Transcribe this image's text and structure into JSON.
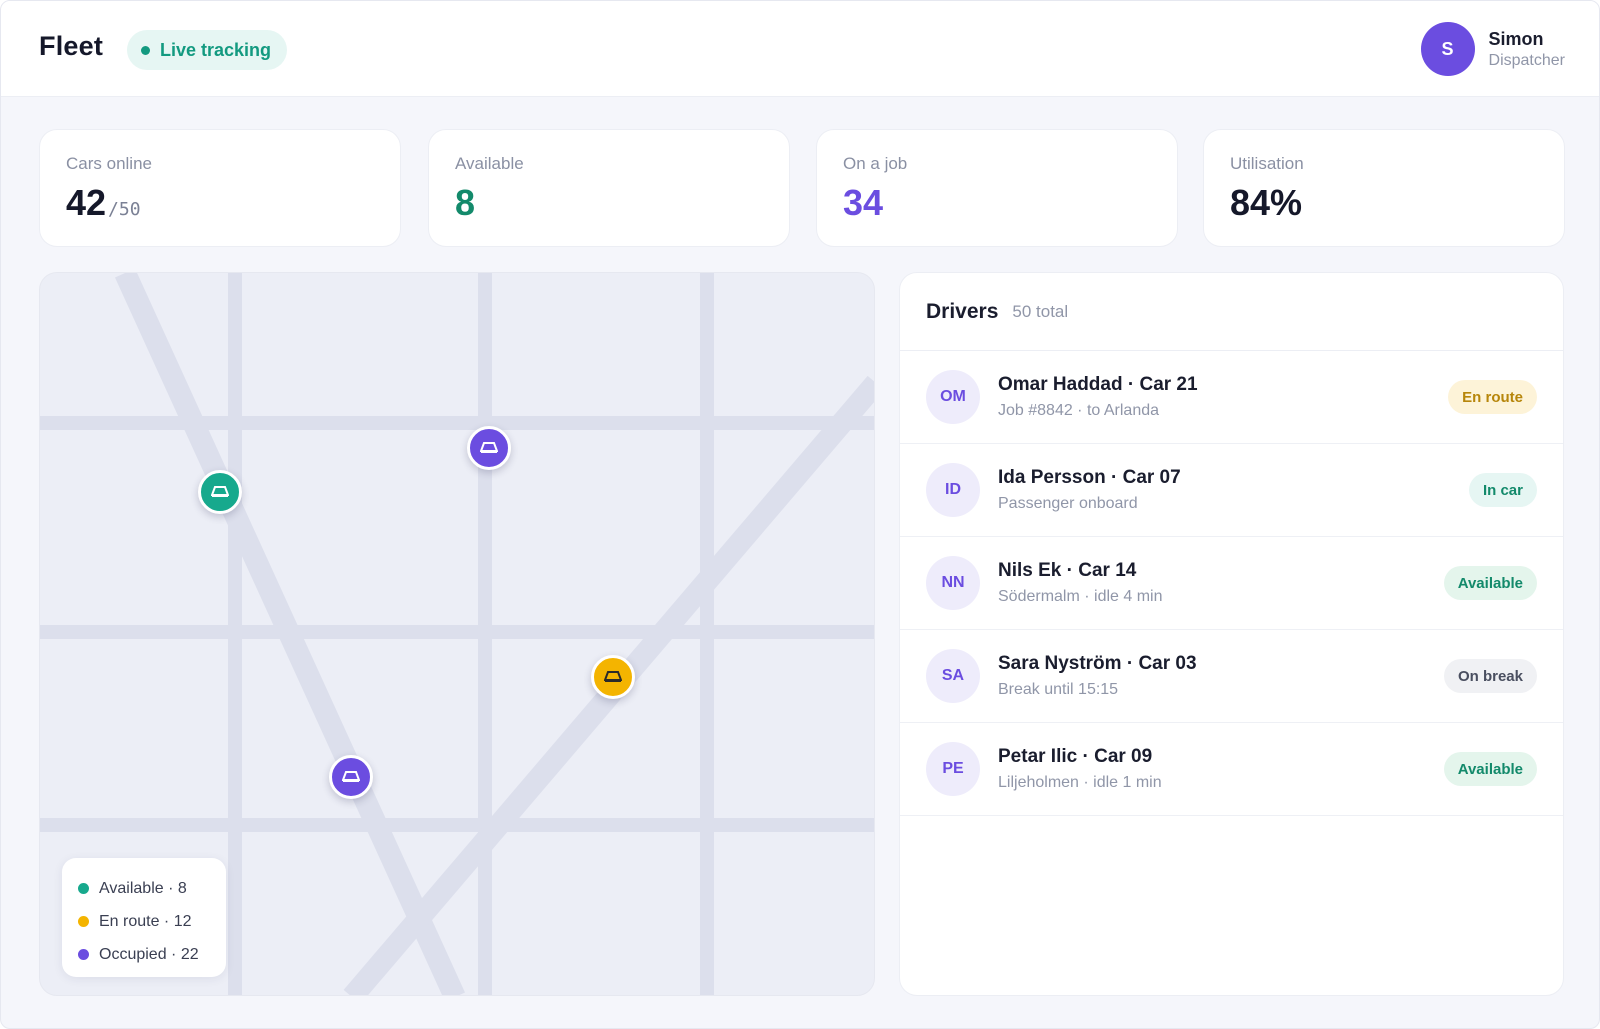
{
  "header": {
    "brand": "Fleet",
    "live_label": "Live tracking",
    "user": {
      "initial": "S",
      "name": "Simon",
      "role": "Dispatcher"
    }
  },
  "stats": [
    {
      "label": "Cars online",
      "value": "42",
      "sub": "/50"
    },
    {
      "label": "Available",
      "value": "8"
    },
    {
      "label": "On a job",
      "value": "34"
    },
    {
      "label": "Utilisation",
      "value": "84%"
    }
  ],
  "map": {
    "legend": [
      {
        "label": "Available · 8",
        "color": "#17a98d"
      },
      {
        "label": "En route · 12",
        "color": "#f4b400"
      },
      {
        "label": "Occupied · 22",
        "color": "#6b4de0"
      }
    ],
    "pins": [
      {
        "status": "available",
        "color": "#17a98d"
      },
      {
        "status": "occupied",
        "color": "#6b4de0"
      },
      {
        "status": "en-route",
        "color": "#f4b400"
      },
      {
        "status": "occupied",
        "color": "#6b4de0"
      }
    ]
  },
  "drivers": {
    "title": "Drivers",
    "count": "50 total",
    "rows": [
      {
        "initials": "OM",
        "name": "Omar Haddad · Car 21",
        "detail": "Job #8842 · to Arlanda",
        "status": "En route",
        "status_bg": "#fdf3d8",
        "status_fg": "#b7860b"
      },
      {
        "initials": "ID",
        "name": "Ida Persson · Car 07",
        "detail": "Passenger onboard",
        "status": "In car",
        "status_bg": "#e6f6f3",
        "status_fg": "#138a6b"
      },
      {
        "initials": "NN",
        "name": "Nils Ek · Car 14",
        "detail": "Södermalm · idle 4 min",
        "status": "Available",
        "status_bg": "#e4f5ec",
        "status_fg": "#138a6b"
      },
      {
        "initials": "SA",
        "name": "Sara Nyström · Car 03",
        "detail": "Break until 15:15",
        "status": "On break",
        "status_bg": "#f0f1f4",
        "status_fg": "#4a4f60"
      },
      {
        "initials": "PE",
        "name": "Petar Ilic · Car 09",
        "detail": "Liljeholmen · idle 1 min",
        "status": "Available",
        "status_bg": "#e4f5ec",
        "status_fg": "#138a6b"
      }
    ]
  }
}
